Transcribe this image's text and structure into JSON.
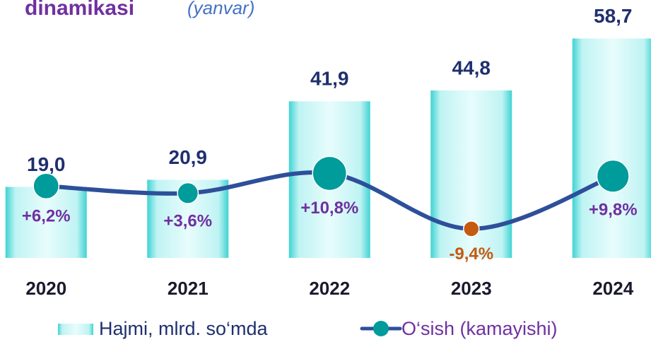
{
  "chart_data": {
    "type": "bar",
    "title": "dinamikasi",
    "subtitle": "(yanvar)",
    "categories": [
      "2020",
      "2021",
      "2022",
      "2023",
      "2024"
    ],
    "series": [
      {
        "name": "Hajmi, mlrd. so‘mda",
        "type": "bar",
        "color": "#3fd3d3",
        "values": [
          19.0,
          20.9,
          41.9,
          44.8,
          58.7
        ],
        "value_labels": [
          "19,0",
          "20,9",
          "41,9",
          "44,8",
          "58,7"
        ]
      },
      {
        "name": "O‘sish (kamayishi)",
        "type": "line",
        "axis": "y2",
        "color": "#2e4f9a",
        "marker_color": "#009b9b",
        "label_color": "#7030a0",
        "negative_color": "#c55a11",
        "values": [
          6.2,
          3.6,
          10.8,
          -9.4,
          9.8
        ],
        "value_labels": [
          "+6,2%",
          "+3,6%",
          "+10,8%",
          "-9,4%",
          "+9,8%"
        ]
      }
    ],
    "ylim": [
      0,
      69
    ],
    "y2lim": [
      -20,
      74
    ]
  }
}
